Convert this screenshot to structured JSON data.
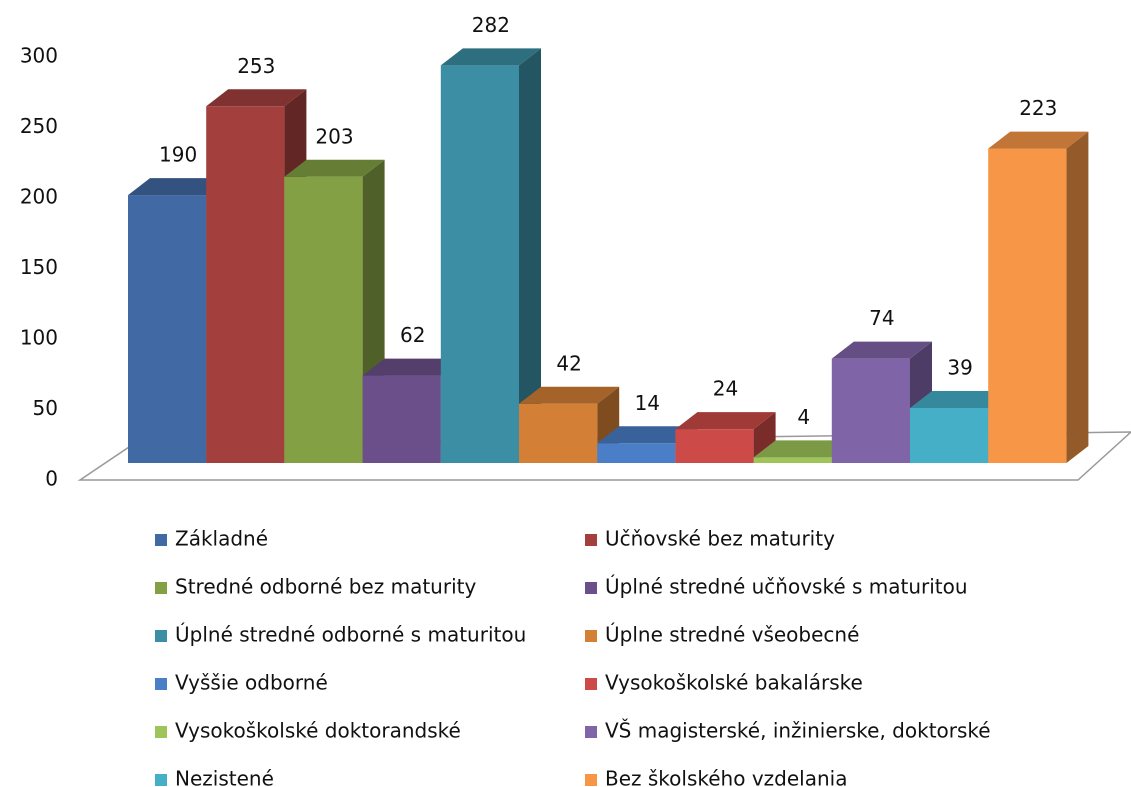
{
  "chart_data": {
    "type": "bar3d",
    "series": [
      {
        "name": "Základné",
        "color": "#4169a3",
        "values": [
          190
        ]
      },
      {
        "name": "Učňovské bez maturity",
        "color": "#a3403d",
        "values": [
          253
        ]
      },
      {
        "name": "Stredné odborné bez maturity",
        "color": "#83a045",
        "values": [
          203
        ]
      },
      {
        "name": "Úplné stredné učňovské s maturitou",
        "color": "#6a4f8a",
        "values": [
          62
        ]
      },
      {
        "name": "Úplné stredné odborné s maturitou",
        "color": "#3b8ea3",
        "values": [
          282
        ]
      },
      {
        "name": "Úplne stredné všeobecné",
        "color": "#d37f35",
        "values": [
          42
        ]
      },
      {
        "name": "Vyššie odborné",
        "color": "#4a7ec6",
        "values": [
          14
        ]
      },
      {
        "name": "Vysokoškolské bakalárske",
        "color": "#cc4a47",
        "values": [
          24
        ]
      },
      {
        "name": "Vysokoškolské doktorandské",
        "color": "#9fc55a",
        "values": [
          4
        ]
      },
      {
        "name": "VŠ magisterské, inžinierske, doktorské",
        "color": "#8064a8",
        "values": [
          74
        ]
      },
      {
        "name": "Nezistené",
        "color": "#45afc8",
        "values": [
          39
        ]
      },
      {
        "name": "Bez školského vzdelania",
        "color": "#f79646",
        "values": [
          223
        ]
      }
    ],
    "ylim": [
      0,
      300
    ],
    "yticks": [
      0,
      50,
      100,
      150,
      200,
      250,
      300
    ],
    "legend": "bottom"
  }
}
